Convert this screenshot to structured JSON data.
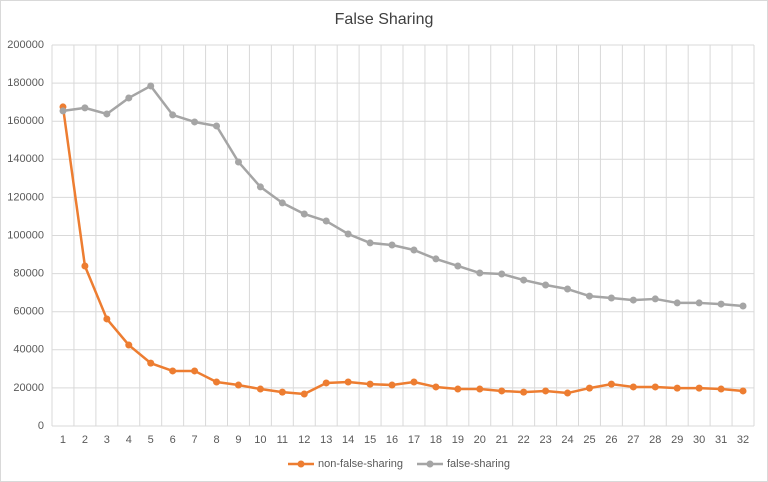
{
  "chart_data": {
    "type": "line",
    "title": "False Sharing",
    "categories": [
      1,
      2,
      3,
      4,
      5,
      6,
      7,
      8,
      9,
      10,
      11,
      12,
      13,
      14,
      15,
      16,
      17,
      18,
      19,
      20,
      21,
      22,
      23,
      24,
      25,
      26,
      27,
      28,
      29,
      30,
      31,
      32
    ],
    "series": [
      {
        "name": "non-false-sharing",
        "color": "#ed7d31",
        "values": [
          167500,
          84000,
          56200,
          42500,
          33000,
          28900,
          28900,
          23100,
          21500,
          19400,
          17800,
          16800,
          22600,
          23100,
          22000,
          21500,
          23100,
          20500,
          19400,
          19400,
          18400,
          17800,
          18400,
          17300,
          19900,
          22000,
          20500,
          20500,
          19900,
          19900,
          19400,
          18400
        ]
      },
      {
        "name": "false-sharing",
        "color": "#a5a5a5",
        "values": [
          165400,
          167000,
          163800,
          172200,
          178500,
          163300,
          159600,
          157500,
          138600,
          125500,
          117100,
          111300,
          107600,
          100800,
          96100,
          95000,
          92400,
          87700,
          84000,
          80300,
          79800,
          76600,
          74000,
          71900,
          68200,
          67200,
          66100,
          66700,
          64600,
          64600,
          64000,
          63000
        ]
      }
    ],
    "ylim": [
      0,
      200000
    ],
    "yticks": [
      0,
      20000,
      40000,
      60000,
      80000,
      100000,
      120000,
      140000,
      160000,
      180000,
      200000
    ],
    "grid": true,
    "legend": "bottom"
  }
}
